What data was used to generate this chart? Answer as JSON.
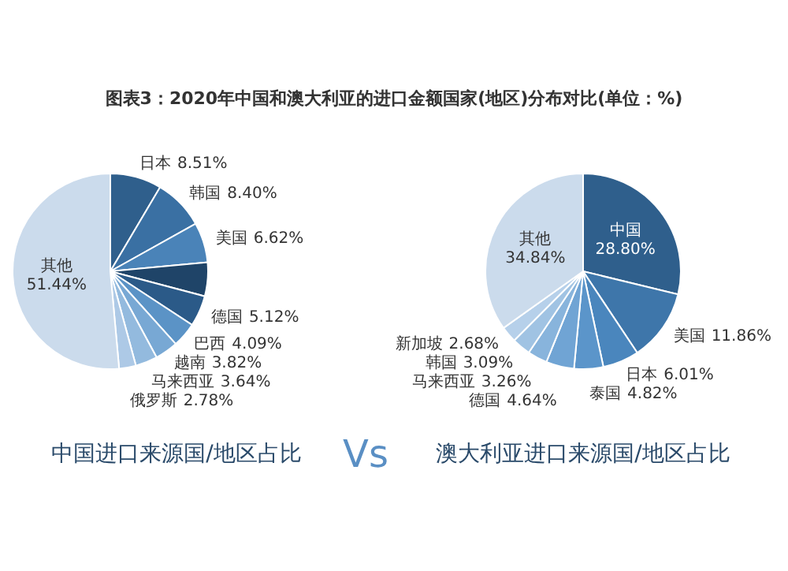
{
  "chart_data": [
    {
      "type": "pie",
      "title": "图表3：2020年中国和澳大利亚的进口金额国家(地区)分布对比(单位：%)",
      "subtitle": "中国进口来源国/地区占比",
      "categories": [
        "日本",
        "韩国",
        "美国",
        null,
        "德国",
        "巴西",
        "越南",
        "马来西亚",
        "俄罗斯",
        "其他"
      ],
      "values": [
        8.51,
        8.4,
        6.62,
        5.58,
        5.12,
        4.09,
        3.82,
        3.64,
        2.78,
        51.44
      ],
      "value_labels": [
        "8.51%",
        "8.40%",
        "6.62%",
        null,
        "5.12%",
        "4.09%",
        "3.82%",
        "3.64%",
        "2.78%",
        "51.44%"
      ],
      "colors": [
        "#2f5f8c",
        "#3a70a3",
        "#4a83b8",
        "#1f4468",
        "#2b5a88",
        "#5b93c6",
        "#78a8d4",
        "#93bade",
        "#adc9e6",
        "#cbdbec"
      ]
    },
    {
      "type": "pie",
      "subtitle": "澳大利亚进口来源国/地区占比",
      "annotations": [
        "Vs"
      ],
      "categories": [
        "中国",
        "美国",
        "日本",
        "泰国",
        "德国",
        "马来西亚",
        "韩国",
        "新加坡",
        "其他"
      ],
      "values": [
        28.8,
        11.86,
        6.01,
        4.82,
        4.64,
        3.26,
        3.09,
        2.68,
        34.84
      ],
      "value_labels": [
        "28.80%",
        "11.86%",
        "6.01%",
        "4.82%",
        "4.64%",
        "3.26%",
        "3.09%",
        "2.68%",
        "34.84%"
      ],
      "colors": [
        "#2f5f8c",
        "#3e76aa",
        "#4a86bd",
        "#5b95ca",
        "#70a4d4",
        "#88b4dc",
        "#a0c3e3",
        "#b6d0ea",
        "#cbdbec"
      ]
    }
  ]
}
